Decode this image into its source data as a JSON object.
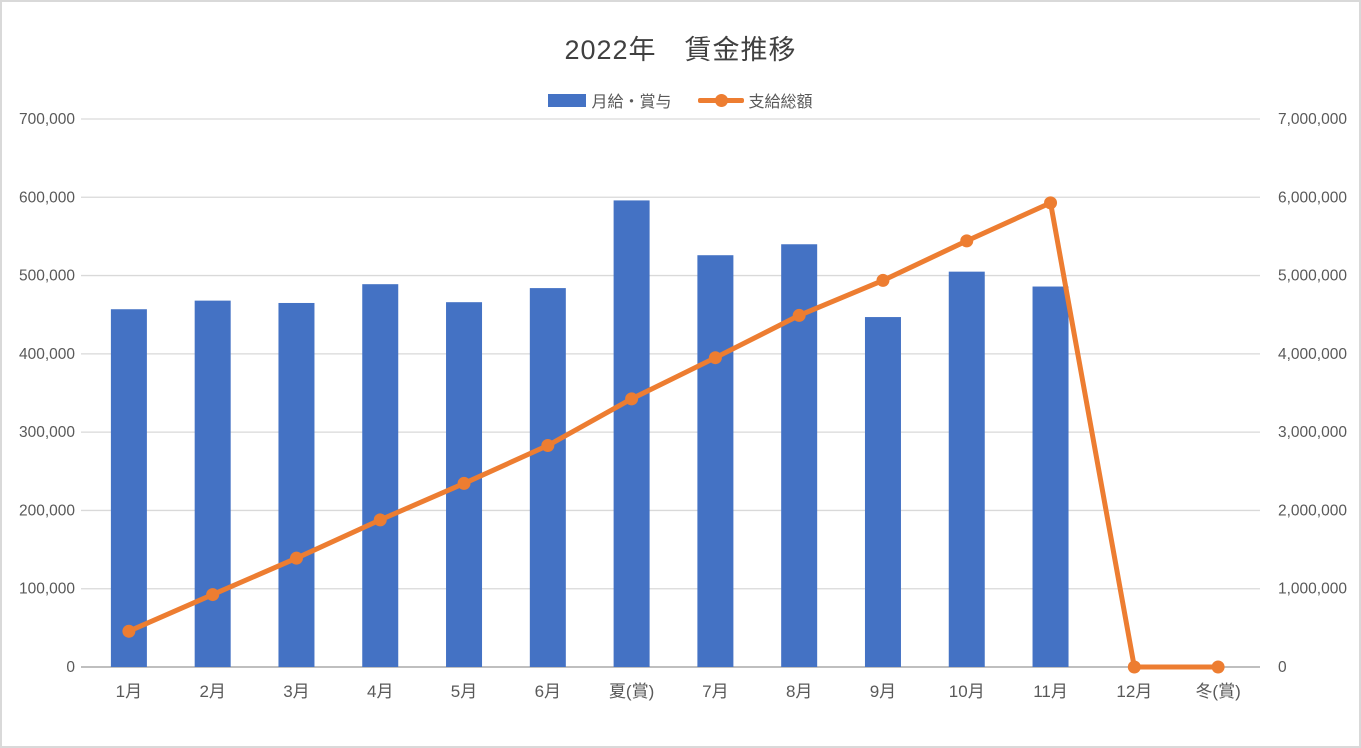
{
  "chart_data": {
    "type": "combo",
    "title": "2022年　賃金推移",
    "categories": [
      "1月",
      "2月",
      "3月",
      "4月",
      "5月",
      "6月",
      "夏(賞)",
      "7月",
      "8月",
      "9月",
      "10月",
      "11月",
      "12月",
      "冬(賞)"
    ],
    "series": [
      {
        "name": "月給・賞与",
        "type": "bar",
        "axis": "left",
        "color": "#4472C4",
        "values": [
          457000,
          468000,
          465000,
          489000,
          466000,
          484000,
          596000,
          526000,
          540000,
          447000,
          505000,
          486000,
          0,
          0
        ]
      },
      {
        "name": "支給総額",
        "type": "line",
        "axis": "right",
        "color": "#ED7D31",
        "values": [
          457000,
          925000,
          1390000,
          1879000,
          2345000,
          2829000,
          3425000,
          3951000,
          4491000,
          4938000,
          5443000,
          5929000,
          0,
          0
        ]
      }
    ],
    "left_axis": {
      "min": 0,
      "max": 700000,
      "step": 100000,
      "tick_labels": [
        "0",
        "100,000",
        "200,000",
        "300,000",
        "400,000",
        "500,000",
        "600,000",
        "700,000"
      ]
    },
    "right_axis": {
      "min": 0,
      "max": 7000000,
      "step": 1000000,
      "tick_labels": [
        "0",
        "1,000,000",
        "2,000,000",
        "3,000,000",
        "4,000,000",
        "5,000,000",
        "6,000,000",
        "7,000,000"
      ]
    },
    "grid": true,
    "legend_position": "top",
    "colors": {
      "bar": "#4472C4",
      "line": "#ED7D31",
      "gridline": "#d9d9d9",
      "axis_line": "#bfbfbf",
      "axis_text": "#595959",
      "title_text": "#404040"
    }
  }
}
